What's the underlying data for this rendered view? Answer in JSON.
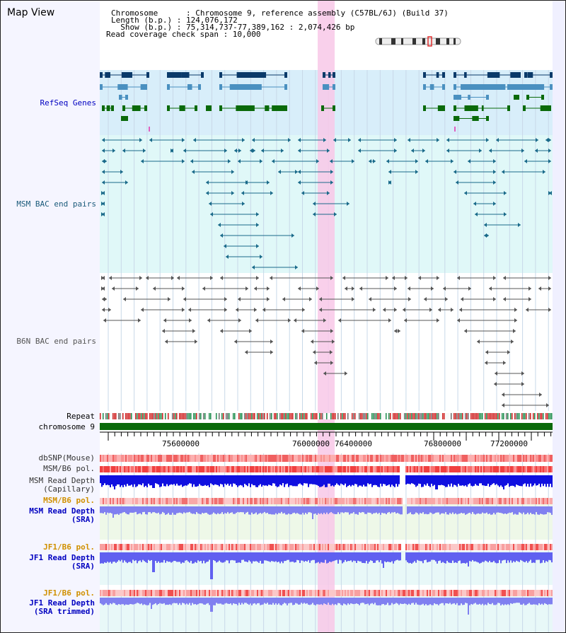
{
  "header": {
    "title": "Map View",
    "chromosome": "Chromosome      : Chromosome 9, reference assembly (C57BL/6J) (Build 37)",
    "length": "Length (b.p.) : 124,076,172",
    "show": "  Show (b.p.) : 75,314,737-77,389,162 : 2,074,426 bp",
    "coverage": "Read coverage check span : 10,000"
  },
  "tracks": {
    "refseq": "RefSeq Genes",
    "msm_bac": "MSM BAC end pairs",
    "b6n_bac": "B6N BAC end pairs",
    "repeat": "Repeat",
    "chromosome": "chromosome 9",
    "dbsnp": "dbSNP(Mouse)",
    "msm_b6_pol_1": "MSM/B6 pol.",
    "msm_depth_cap_1": "MSM Read Depth",
    "msm_depth_cap_2": "(Capillary)",
    "msm_b6_pol_2": "MSM/B6 pol.",
    "msm_depth_sra_1": "MSM Read Depth",
    "msm_depth_sra_2": "(SRA)",
    "jf1_b6_pol_1": "JF1/B6 pol.",
    "jf1_depth_sra_1": "JF1 Read Depth",
    "jf1_depth_sra_2": "(SRA)",
    "jf1_b6_pol_2": "JF1/B6 pol.",
    "jf1_depth_trim_1": "JF1 Read Depth",
    "jf1_depth_trim_2": "(SRA trimmed)"
  },
  "axis": {
    "ticks": [
      "75600000",
      "76000000",
      "76400000",
      "76800000",
      "77200000"
    ]
  },
  "colors": {
    "refseq_blue_dark": "#0a3a6a",
    "refseq_blue_light": "#4a90c0",
    "refseq_green": "#0a6a0a",
    "msm_bac": "#1a6a8a",
    "b6n_bac": "#555555",
    "highlight": "#f8c8e8",
    "refseq_bg": "#d8eefa",
    "msm_bg": "#e0f8f8",
    "chromosome_bar": "#0a6a0a",
    "label_msm": "#c08000",
    "label_blue": "#0000c0"
  }
}
